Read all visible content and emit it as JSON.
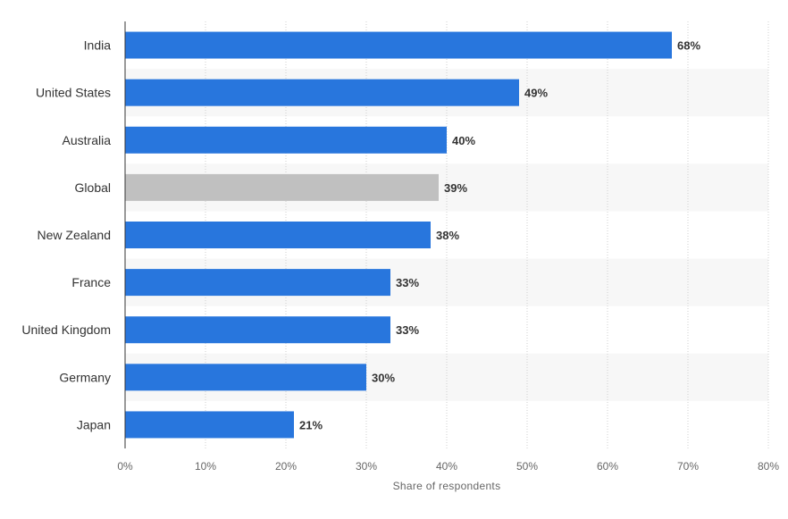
{
  "chart_data": {
    "type": "bar",
    "orientation": "horizontal",
    "title": "",
    "xlabel": "Share of respondents",
    "ylabel": "",
    "xlim": [
      0,
      80
    ],
    "x_ticks": [
      0,
      10,
      20,
      30,
      40,
      50,
      60,
      70,
      80
    ],
    "x_tick_labels": [
      "0%",
      "10%",
      "20%",
      "30%",
      "40%",
      "50%",
      "60%",
      "70%",
      "80%"
    ],
    "grid": "vertical dotted",
    "legend": "none",
    "categories": [
      "India",
      "United States",
      "Australia",
      "Global",
      "New Zealand",
      "France",
      "United Kingdom",
      "Germany",
      "Japan"
    ],
    "values": [
      68,
      49,
      40,
      39,
      38,
      33,
      33,
      30,
      21
    ],
    "data_labels": [
      "68%",
      "49%",
      "40%",
      "39%",
      "38%",
      "33%",
      "33%",
      "30%",
      "21%"
    ],
    "highlight_category": "Global",
    "colors": {
      "bar": "#2876dd",
      "highlight_bar": "#c0c0c0",
      "alt_row_band": "#f7f7f7",
      "grid": "#cfcfcf",
      "axis": "#333333"
    }
  }
}
